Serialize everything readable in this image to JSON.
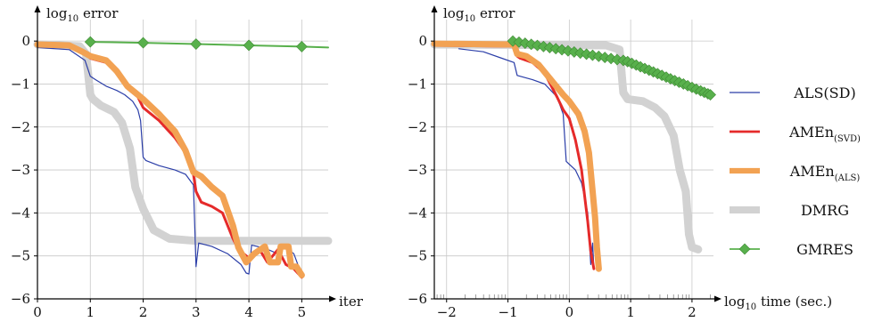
{
  "chart_data": [
    {
      "type": "line",
      "ylabel": "log10 error",
      "xlabel": "iter",
      "xlim": [
        0,
        5.5
      ],
      "ylim": [
        -6,
        0.5
      ],
      "xticks": [
        0,
        1,
        2,
        3,
        4,
        5
      ],
      "yticks": [
        0,
        -1,
        -2,
        -3,
        -4,
        -5,
        -6
      ],
      "grid": true,
      "series": [
        {
          "name": "DMRG",
          "color": "#d2d2d2",
          "width": 9,
          "points": [
            [
              0,
              -0.08
            ],
            [
              0.8,
              -0.12
            ],
            [
              0.92,
              -0.3
            ],
            [
              1.0,
              -1.25
            ],
            [
              1.05,
              -1.35
            ],
            [
              1.2,
              -1.5
            ],
            [
              1.45,
              -1.65
            ],
            [
              1.6,
              -1.9
            ],
            [
              1.75,
              -2.5
            ],
            [
              1.85,
              -3.4
            ],
            [
              2.0,
              -3.9
            ],
            [
              2.2,
              -4.4
            ],
            [
              2.5,
              -4.6
            ],
            [
              3.0,
              -4.65
            ],
            [
              5.5,
              -4.65
            ]
          ]
        },
        {
          "name": "ALS(SD)",
          "color": "#2b3ea8",
          "width": 1.2,
          "points": [
            [
              0,
              -0.15
            ],
            [
              0.6,
              -0.2
            ],
            [
              0.9,
              -0.45
            ],
            [
              1.0,
              -0.82
            ],
            [
              1.1,
              -0.9
            ],
            [
              1.3,
              -1.05
            ],
            [
              1.5,
              -1.15
            ],
            [
              1.65,
              -1.25
            ],
            [
              1.8,
              -1.4
            ],
            [
              1.9,
              -1.6
            ],
            [
              1.95,
              -1.85
            ],
            [
              2.0,
              -2.7
            ],
            [
              2.05,
              -2.78
            ],
            [
              2.3,
              -2.9
            ],
            [
              2.6,
              -3.0
            ],
            [
              2.8,
              -3.1
            ],
            [
              2.95,
              -3.35
            ],
            [
              3.0,
              -5.25
            ],
            [
              3.05,
              -4.7
            ],
            [
              3.3,
              -4.78
            ],
            [
              3.6,
              -4.95
            ],
            [
              3.85,
              -5.2
            ],
            [
              3.95,
              -5.4
            ],
            [
              4.0,
              -5.42
            ],
            [
              4.05,
              -4.75
            ],
            [
              4.3,
              -4.82
            ],
            [
              4.55,
              -4.95
            ],
            [
              4.6,
              -5.05
            ],
            [
              4.65,
              -4.75
            ],
            [
              4.85,
              -4.95
            ],
            [
              5.0,
              -5.45
            ]
          ]
        },
        {
          "name": "AMEn(SVD)",
          "color": "#e52a2a",
          "width": 3,
          "points": [
            [
              0,
              -0.1
            ],
            [
              0.6,
              -0.13
            ],
            [
              0.9,
              -0.3
            ],
            [
              1.0,
              -0.4
            ],
            [
              1.3,
              -0.5
            ],
            [
              1.5,
              -0.75
            ],
            [
              1.7,
              -1.1
            ],
            [
              1.9,
              -1.3
            ],
            [
              2.0,
              -1.55
            ],
            [
              2.3,
              -1.85
            ],
            [
              2.6,
              -2.25
            ],
            [
              2.8,
              -2.6
            ],
            [
              2.95,
              -3.1
            ],
            [
              3.0,
              -3.5
            ],
            [
              3.1,
              -3.75
            ],
            [
              3.3,
              -3.85
            ],
            [
              3.5,
              -4.0
            ],
            [
              3.7,
              -4.6
            ],
            [
              3.8,
              -4.85
            ],
            [
              4.0,
              -5.05
            ],
            [
              4.2,
              -4.85
            ],
            [
              4.35,
              -5.15
            ],
            [
              4.55,
              -4.85
            ],
            [
              4.7,
              -5.2
            ],
            [
              4.85,
              -5.3
            ],
            [
              5.0,
              -5.5
            ]
          ]
        },
        {
          "name": "AMEn(ALS)",
          "color": "#f2a253",
          "width": 7,
          "points": [
            [
              0,
              -0.08
            ],
            [
              0.6,
              -0.1
            ],
            [
              0.85,
              -0.25
            ],
            [
              1.0,
              -0.35
            ],
            [
              1.3,
              -0.45
            ],
            [
              1.5,
              -0.7
            ],
            [
              1.7,
              -1.05
            ],
            [
              1.9,
              -1.25
            ],
            [
              2.0,
              -1.35
            ],
            [
              2.3,
              -1.7
            ],
            [
              2.6,
              -2.1
            ],
            [
              2.8,
              -2.55
            ],
            [
              2.95,
              -3.05
            ],
            [
              3.1,
              -3.15
            ],
            [
              3.3,
              -3.4
            ],
            [
              3.5,
              -3.6
            ],
            [
              3.7,
              -4.3
            ],
            [
              3.8,
              -4.8
            ],
            [
              3.95,
              -5.15
            ],
            [
              4.1,
              -4.95
            ],
            [
              4.3,
              -4.78
            ],
            [
              4.4,
              -5.15
            ],
            [
              4.55,
              -5.15
            ],
            [
              4.6,
              -4.78
            ],
            [
              4.75,
              -4.78
            ],
            [
              4.8,
              -5.25
            ],
            [
              4.9,
              -5.25
            ],
            [
              5.0,
              -5.45
            ]
          ]
        },
        {
          "name": "GMRES",
          "color": "#58b04c",
          "width": 2,
          "marker": "diamond",
          "markers_at": [
            1,
            2,
            3,
            4,
            5
          ],
          "points": [
            [
              1,
              -0.02
            ],
            [
              2,
              -0.04
            ],
            [
              3,
              -0.07
            ],
            [
              4,
              -0.1
            ],
            [
              5,
              -0.13
            ],
            [
              5.5,
              -0.15
            ]
          ]
        }
      ]
    },
    {
      "type": "line",
      "ylabel": "log10 error",
      "xlabel": "log10 time (sec.)",
      "xlim": [
        -2.2,
        2.35
      ],
      "ylim": [
        -6,
        0.5
      ],
      "xticks": [
        -2,
        -1,
        0,
        1,
        2
      ],
      "yticks": [
        0,
        -1,
        -2,
        -3,
        -4,
        -5,
        -6
      ],
      "grid": true,
      "series": [
        {
          "name": "DMRG",
          "color": "#d2d2d2",
          "width": 9,
          "points": [
            [
              -2.2,
              -0.08
            ],
            [
              0.6,
              -0.1
            ],
            [
              0.82,
              -0.2
            ],
            [
              0.88,
              -1.2
            ],
            [
              0.95,
              -1.35
            ],
            [
              1.2,
              -1.4
            ],
            [
              1.4,
              -1.55
            ],
            [
              1.55,
              -1.75
            ],
            [
              1.7,
              -2.2
            ],
            [
              1.8,
              -3.0
            ],
            [
              1.9,
              -3.5
            ],
            [
              1.95,
              -4.5
            ],
            [
              2.0,
              -4.8
            ],
            [
              2.1,
              -4.85
            ]
          ]
        },
        {
          "name": "ALS(SD)",
          "color": "#2b3ea8",
          "width": 1.2,
          "points": [
            [
              -1.8,
              -0.18
            ],
            [
              -1.4,
              -0.25
            ],
            [
              -1.1,
              -0.4
            ],
            [
              -0.9,
              -0.5
            ],
            [
              -0.85,
              -0.8
            ],
            [
              -0.6,
              -0.9
            ],
            [
              -0.4,
              -1.0
            ],
            [
              -0.3,
              -1.15
            ],
            [
              -0.2,
              -1.3
            ],
            [
              -0.1,
              -1.7
            ],
            [
              -0.05,
              -2.8
            ],
            [
              0.1,
              -3.0
            ],
            [
              0.2,
              -3.3
            ],
            [
              0.3,
              -4.0
            ],
            [
              0.35,
              -5.2
            ],
            [
              0.38,
              -4.7
            ],
            [
              0.4,
              -5.3
            ]
          ]
        },
        {
          "name": "AMEn(SVD)",
          "color": "#e52a2a",
          "width": 3,
          "points": [
            [
              -2.2,
              -0.1
            ],
            [
              -0.9,
              -0.12
            ],
            [
              -0.85,
              -0.35
            ],
            [
              -0.8,
              -0.4
            ],
            [
              -0.6,
              -0.5
            ],
            [
              -0.4,
              -0.75
            ],
            [
              -0.2,
              -1.3
            ],
            [
              -0.1,
              -1.6
            ],
            [
              0.0,
              -1.8
            ],
            [
              0.1,
              -2.3
            ],
            [
              0.2,
              -3.0
            ],
            [
              0.25,
              -3.6
            ],
            [
              0.3,
              -4.2
            ],
            [
              0.35,
              -4.9
            ],
            [
              0.4,
              -5.3
            ]
          ]
        },
        {
          "name": "AMEn(ALS)",
          "color": "#f2a253",
          "width": 7,
          "points": [
            [
              -2.2,
              -0.06
            ],
            [
              -0.9,
              -0.08
            ],
            [
              -0.85,
              -0.3
            ],
            [
              -0.7,
              -0.35
            ],
            [
              -0.5,
              -0.55
            ],
            [
              -0.3,
              -0.9
            ],
            [
              -0.1,
              -1.25
            ],
            [
              0.0,
              -1.4
            ],
            [
              0.15,
              -1.7
            ],
            [
              0.25,
              -2.1
            ],
            [
              0.32,
              -2.6
            ],
            [
              0.38,
              -3.5
            ],
            [
              0.42,
              -4.1
            ],
            [
              0.45,
              -4.8
            ],
            [
              0.48,
              -5.3
            ]
          ]
        },
        {
          "name": "GMRES",
          "color": "#58b04c",
          "width": 2,
          "marker": "diamond",
          "markers_at": [
            -0.92,
            -0.82,
            -0.72,
            -0.62,
            -0.52,
            -0.42,
            -0.32,
            -0.22,
            -0.12,
            -0.02,
            0.08,
            0.18,
            0.28,
            0.38,
            0.48,
            0.58,
            0.68,
            0.78,
            0.88,
            0.95,
            1.02,
            1.09,
            1.16,
            1.23,
            1.3,
            1.37,
            1.44,
            1.51,
            1.58,
            1.65,
            1.72,
            1.79,
            1.86,
            1.93,
            2.0,
            2.07,
            2.14,
            2.2,
            2.26,
            2.3
          ],
          "points": [
            [
              -0.92,
              0.0
            ],
            [
              0.85,
              -0.45
            ],
            [
              0.9,
              -0.45
            ],
            [
              2.3,
              -1.25
            ]
          ]
        }
      ]
    }
  ],
  "legend": [
    {
      "label": "ALS(SD)",
      "series": "ALS(SD)"
    },
    {
      "label": "AMEn",
      "sub": "(SVD)",
      "series": "AMEn(SVD)"
    },
    {
      "label": "AMEn",
      "sub": "(ALS)",
      "series": "AMEn(ALS)"
    },
    {
      "label": "DMRG",
      "series": "DMRG"
    },
    {
      "label": "GMRES",
      "series": "GMRES"
    }
  ]
}
